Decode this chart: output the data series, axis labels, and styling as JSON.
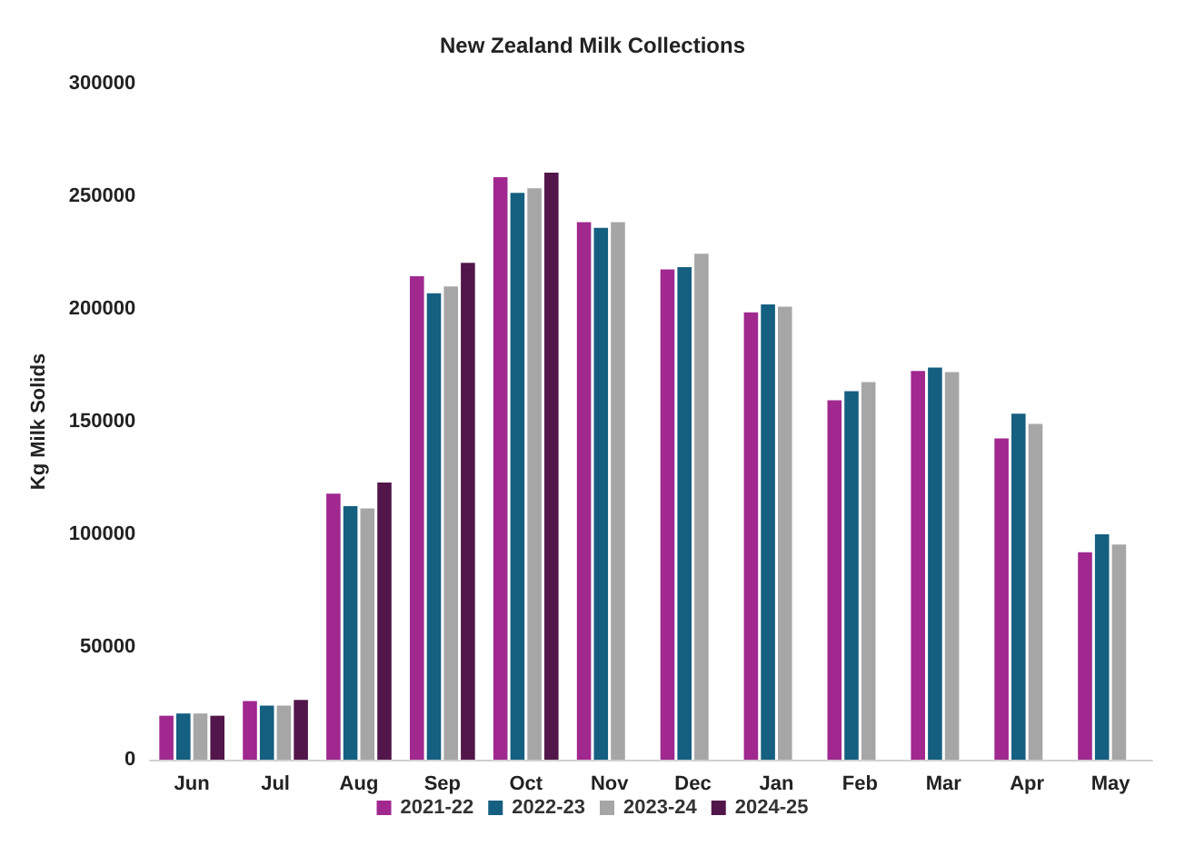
{
  "chart_data": {
    "type": "bar",
    "title": "New Zealand Milk Collections",
    "ylabel": "Kg Milk Solids",
    "categories": [
      "Jun",
      "Jul",
      "Aug",
      "Sep",
      "Oct",
      "Nov",
      "Dec",
      "Jan",
      "Feb",
      "Mar",
      "Apr",
      "May"
    ],
    "series": [
      {
        "name": "2021-22",
        "color": "#a0288f",
        "values": [
          19500,
          26000,
          118000,
          214500,
          258500,
          238500,
          217500,
          198500,
          159500,
          172500,
          142500,
          92000
        ]
      },
      {
        "name": "2022-23",
        "color": "#155f80",
        "values": [
          20500,
          24000,
          112500,
          207000,
          251500,
          236000,
          218500,
          202000,
          163500,
          174000,
          153500,
          100000
        ]
      },
      {
        "name": "2023-24",
        "color": "#a6a6a6",
        "values": [
          20500,
          24000,
          111500,
          210000,
          253500,
          238500,
          224500,
          201000,
          167500,
          172000,
          149000,
          95500
        ]
      },
      {
        "name": "2024-25",
        "color": "#52164a",
        "values": [
          19500,
          26500,
          123000,
          220500,
          260500,
          null,
          null,
          null,
          null,
          null,
          null,
          null
        ]
      }
    ],
    "ylim": [
      0,
      300000
    ],
    "yticks": [
      0,
      50000,
      100000,
      150000,
      200000,
      250000,
      300000
    ],
    "grid": false,
    "legend": "bottom"
  }
}
